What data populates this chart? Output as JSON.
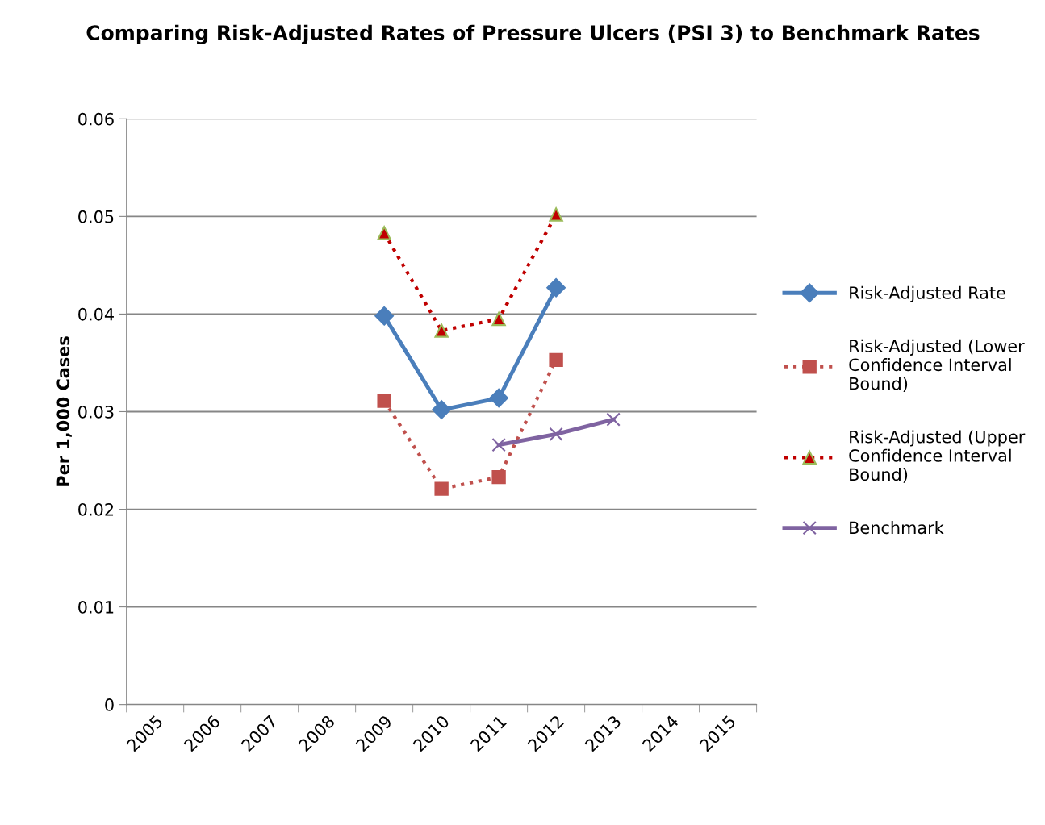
{
  "chart_data": {
    "type": "line",
    "title": "Comparing Risk-Adjusted Rates of Pressure Ulcers (PSI 3) to Benchmark Rates",
    "ylabel": "Per 1,000 Cases",
    "categories": [
      "2005",
      "2006",
      "2007",
      "2008",
      "2009",
      "2010",
      "2011",
      "2012",
      "2013",
      "2014",
      "2015"
    ],
    "series": [
      {
        "name": "Risk-Adjusted Rate",
        "color": "#4a7ebb",
        "marker": "diamond",
        "line_style": "solid",
        "values": [
          null,
          null,
          null,
          null,
          0.0398,
          0.0302,
          0.0314,
          0.0427,
          null,
          null,
          null
        ]
      },
      {
        "name": "Risk-Adjusted (Lower Confidence Interval Bound)",
        "color": "#c0504d",
        "marker": "square",
        "line_style": "dotted",
        "values": [
          null,
          null,
          null,
          null,
          0.0311,
          0.0221,
          0.0233,
          0.0353,
          null,
          null,
          null
        ]
      },
      {
        "name": "Risk-Adjusted (Upper Confidence Interval Bound)",
        "color": "#c00000",
        "marker": "triangle",
        "line_style": "dotted",
        "values": [
          null,
          null,
          null,
          null,
          0.0483,
          0.0383,
          0.0395,
          0.0502,
          null,
          null,
          null
        ]
      },
      {
        "name": "Benchmark",
        "color": "#7f63a1",
        "marker": "cross",
        "line_style": "solid",
        "values": [
          null,
          null,
          null,
          null,
          null,
          null,
          0.0266,
          0.0277,
          0.0292,
          null,
          null
        ]
      }
    ],
    "ylim": [
      0,
      0.06
    ],
    "yticks": [
      0,
      0.01,
      0.02,
      0.03,
      0.04,
      0.05,
      0.06
    ],
    "grid": "y",
    "legend": "right"
  }
}
